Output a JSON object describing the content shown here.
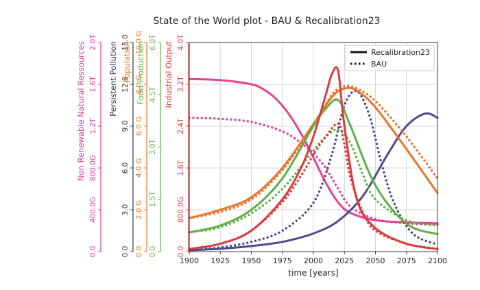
{
  "chart_data": {
    "type": "line",
    "title": "State of the World plot - BAU & Recalibration23",
    "xlabel": "time [years]",
    "xlim": [
      1900,
      2100
    ],
    "xticks": [
      1900,
      1925,
      1950,
      1975,
      2000,
      2025,
      2050,
      2075,
      2100
    ],
    "grid": true,
    "legend_position": "top-right",
    "legend": [
      {
        "label": "Recalibration23",
        "style": "solid"
      },
      {
        "label": "BAU",
        "style": "dotted"
      }
    ],
    "axes": [
      {
        "key": "resources",
        "label": "Non Renewable Natural Ressources",
        "color": "#d6399a",
        "ylim": [
          0,
          2.0
        ],
        "ticks": [
          0,
          0.4,
          0.8,
          1.2,
          1.6,
          2.0
        ],
        "tick_labels": [
          "0.0",
          "400.0G",
          "800.0G",
          "1.2T",
          "1.6T",
          "2.0T"
        ]
      },
      {
        "key": "pollution",
        "label": "Persistent Pollution",
        "color": "#2d3a4a",
        "ylim": [
          0,
          15.0
        ],
        "ticks": [
          0,
          3,
          6,
          9,
          12,
          15
        ],
        "tick_labels": [
          "0.0",
          "3.0",
          "6.0",
          "9.0",
          "12.0",
          "15.0"
        ]
      },
      {
        "key": "population",
        "label": "Population",
        "color": "#e8742a",
        "ylim": [
          0,
          10.0
        ],
        "ticks": [
          0,
          2,
          4,
          6,
          8,
          10
        ],
        "tick_labels": [
          "0.0",
          "2.0 G",
          "4.0 G",
          "6.0 G",
          "8.0 G",
          "10.0 G"
        ]
      },
      {
        "key": "food",
        "label": "Food Production",
        "color": "#5faf46",
        "ylim": [
          0,
          6.0
        ],
        "ticks": [
          0,
          1.5,
          3.0,
          4.5,
          6.0
        ],
        "tick_labels": [
          "0.0",
          "1.5T",
          "3.0T",
          "4.5T",
          "6.0T"
        ]
      },
      {
        "key": "industry",
        "label": "Industrial Output",
        "color": "#dc3b3b",
        "ylim": [
          0,
          4.0
        ],
        "ticks": [
          0,
          0.8,
          1.6,
          2.4,
          3.2,
          4.0
        ],
        "tick_labels": [
          "0.0",
          "800.0G",
          "1.6T",
          "2.4T",
          "3.2T",
          "4.0T"
        ]
      }
    ],
    "series": [
      {
        "name": "Non Renewable Natural Ressources",
        "axis": "resources",
        "style": "solid",
        "color": "#e6408f",
        "x": [
          1900,
          1925,
          1950,
          1960,
          1970,
          1980,
          1990,
          2000,
          2010,
          2020,
          2030,
          2050,
          2075,
          2100
        ],
        "y": [
          1.65,
          1.64,
          1.6,
          1.55,
          1.46,
          1.32,
          1.13,
          0.9,
          0.66,
          0.47,
          0.37,
          0.3,
          0.28,
          0.27
        ]
      },
      {
        "name": "Non Renewable Natural Ressources",
        "axis": "resources",
        "style": "dotted",
        "color": "#e6408f",
        "x": [
          1900,
          1925,
          1950,
          1975,
          1990,
          2000,
          2010,
          2020,
          2030,
          2050,
          2075,
          2100
        ],
        "y": [
          1.28,
          1.27,
          1.24,
          1.15,
          1.04,
          0.94,
          0.8,
          0.6,
          0.43,
          0.31,
          0.27,
          0.26
        ]
      },
      {
        "name": "Persistent Pollution",
        "axis": "pollution",
        "style": "solid",
        "color": "#4a4a8c",
        "x": [
          1900,
          1925,
          1950,
          1975,
          2000,
          2020,
          2040,
          2060,
          2075,
          2090,
          2100
        ],
        "y": [
          0.1,
          0.2,
          0.4,
          0.7,
          1.3,
          2.2,
          4.0,
          7.0,
          9.0,
          9.9,
          9.6
        ]
      },
      {
        "name": "Persistent Pollution",
        "axis": "pollution",
        "style": "dotted",
        "color": "#4a4a8c",
        "x": [
          1900,
          1925,
          1950,
          1975,
          2000,
          2015,
          2025,
          2035,
          2045,
          2055,
          2065,
          2080,
          2100
        ],
        "y": [
          0.1,
          0.3,
          0.7,
          1.5,
          3.5,
          7.0,
          10.5,
          11.5,
          9.8,
          6.3,
          3.5,
          1.3,
          0.5
        ]
      },
      {
        "name": "Population",
        "axis": "population",
        "style": "solid",
        "color": "#e8742a",
        "x": [
          1900,
          1925,
          1950,
          1975,
          2000,
          2015,
          2025,
          2035,
          2050,
          2075,
          2100
        ],
        "y": [
          1.6,
          2.0,
          2.6,
          4.0,
          6.1,
          7.4,
          7.8,
          7.7,
          6.9,
          4.9,
          2.8
        ]
      },
      {
        "name": "Population",
        "axis": "population",
        "style": "dotted",
        "color": "#e8742a",
        "x": [
          1900,
          1925,
          1950,
          1975,
          2000,
          2015,
          2025,
          2035,
          2050,
          2075,
          2100
        ],
        "y": [
          1.6,
          1.9,
          2.5,
          3.9,
          6.0,
          7.5,
          7.9,
          7.8,
          7.2,
          5.5,
          3.5
        ]
      },
      {
        "name": "Food Production",
        "axis": "food",
        "style": "solid",
        "color": "#5faf46",
        "x": [
          1900,
          1925,
          1950,
          1975,
          2000,
          2010,
          2020,
          2030,
          2050,
          2075,
          2100
        ],
        "y": [
          0.55,
          0.75,
          1.2,
          2.1,
          3.6,
          4.1,
          4.35,
          3.6,
          1.9,
          0.8,
          0.5
        ]
      },
      {
        "name": "Food Production",
        "axis": "food",
        "style": "dotted",
        "color": "#5faf46",
        "x": [
          1900,
          1925,
          1950,
          1975,
          2000,
          2010,
          2020,
          2030,
          2040,
          2050,
          2075,
          2100
        ],
        "y": [
          0.55,
          0.7,
          1.1,
          1.8,
          2.9,
          3.3,
          3.5,
          3.1,
          2.2,
          1.5,
          0.9,
          0.75
        ]
      },
      {
        "name": "Industrial Output",
        "axis": "industry",
        "style": "solid",
        "color": "#dc3b3b",
        "x": [
          1900,
          1925,
          1950,
          1975,
          1990,
          2000,
          2010,
          2015,
          2020,
          2025,
          2035,
          2050,
          2075,
          2100
        ],
        "y": [
          0.05,
          0.15,
          0.4,
          1.0,
          1.6,
          2.2,
          3.0,
          3.4,
          3.45,
          2.4,
          1.0,
          0.45,
          0.15,
          0.05
        ]
      },
      {
        "name": "Industrial Output",
        "axis": "industry",
        "style": "dotted",
        "color": "#dc3b3b",
        "x": [
          1900,
          1925,
          1950,
          1975,
          1990,
          2000,
          2010,
          2020,
          2025,
          2030,
          2040,
          2050,
          2075,
          2100
        ],
        "y": [
          0.05,
          0.15,
          0.4,
          0.95,
          1.45,
          1.85,
          2.2,
          2.45,
          2.05,
          1.4,
          0.75,
          0.4,
          0.15,
          0.05
        ]
      }
    ]
  }
}
